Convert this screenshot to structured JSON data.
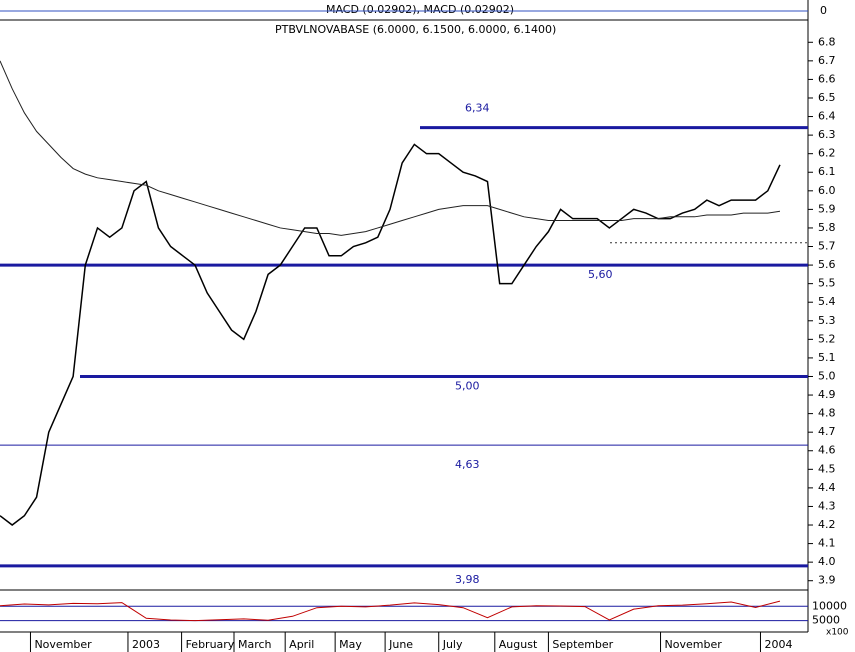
{
  "chart_data": {
    "type": "line",
    "title": "PTBVLNOVABASE (6.0000, 6.1500, 6.0000, 6.1400)",
    "macd_label": "MACD (0.02902), MACD (0.02902)",
    "macd_tick": 0,
    "xlim": [
      0,
      66.3
    ],
    "xticks": [
      {
        "value": 2.5,
        "label": "November"
      },
      {
        "value": 10.5,
        "label": "2003"
      },
      {
        "value": 14.9,
        "label": "February"
      },
      {
        "value": 19.2,
        "label": "March"
      },
      {
        "value": 23.4,
        "label": "April"
      },
      {
        "value": 27.5,
        "label": "May"
      },
      {
        "value": 31.6,
        "label": "June"
      },
      {
        "value": 36,
        "label": "July"
      },
      {
        "value": 40.6,
        "label": "August"
      },
      {
        "value": 45,
        "label": "September"
      },
      {
        "value": 54.2,
        "label": "November"
      },
      {
        "value": 62.4,
        "label": "2004"
      }
    ],
    "ylim": [
      3.85,
      6.92
    ],
    "yticks": [
      3.9,
      {
        "value": 4,
        "label": "4.0"
      },
      4.1,
      4.2,
      4.3,
      4.4,
      4.5,
      4.6,
      4.7,
      4.8,
      4.9,
      {
        "value": 5,
        "label": "5.0"
      },
      5.1,
      5.2,
      5.3,
      5.4,
      5.5,
      5.6,
      5.7,
      5.8,
      5.9,
      {
        "value": 6,
        "label": "6.0"
      },
      6.1,
      6.2,
      6.3,
      6.4,
      6.5,
      6.6,
      6.7,
      6.8
    ],
    "series": [
      {
        "color": "#000000",
        "values": [
          4.25,
          4.2,
          4.25,
          4.35,
          4.7,
          4.85,
          5.0,
          5.6,
          5.8,
          5.75,
          5.8,
          6.0,
          6.05,
          5.8,
          5.7,
          5.65,
          5.6,
          5.45,
          5.35,
          5.25,
          5.2,
          5.35,
          5.55,
          5.6,
          5.7,
          5.8,
          5.8,
          5.65,
          5.65,
          5.7,
          5.72,
          5.75,
          5.9,
          6.15,
          6.25,
          6.2,
          6.2,
          6.15,
          6.1,
          6.08,
          6.05,
          5.5,
          5.5,
          5.6,
          5.7,
          5.78,
          5.9,
          5.85,
          5.85,
          5.85,
          5.8,
          5.85,
          5.9,
          5.88,
          5.85,
          5.85,
          5.88,
          5.9,
          5.95,
          5.92,
          5.95,
          5.95,
          5.95,
          6.0,
          6.14
        ]
      },
      {
        "color": "#222222",
        "values": [
          6.7,
          6.55,
          6.42,
          6.32,
          6.25,
          6.18,
          6.12,
          6.09,
          6.07,
          6.06,
          6.05,
          6.04,
          6.03,
          6.0,
          5.98,
          5.96,
          5.94,
          5.92,
          5.9,
          5.88,
          5.86,
          5.84,
          5.82,
          5.8,
          5.79,
          5.78,
          5.77,
          5.77,
          5.76,
          5.77,
          5.78,
          5.8,
          5.82,
          5.84,
          5.86,
          5.88,
          5.9,
          5.91,
          5.92,
          5.92,
          5.92,
          5.9,
          5.88,
          5.86,
          5.85,
          5.84,
          5.84,
          5.84,
          5.84,
          5.84,
          5.84,
          5.84,
          5.85,
          5.85,
          5.85,
          5.86,
          5.86,
          5.86,
          5.87,
          5.87,
          5.87,
          5.88,
          5.88,
          5.88,
          5.89
        ]
      }
    ],
    "levels": [
      {
        "value": 6.34,
        "label": "6,34"
      },
      {
        "value": 5.6,
        "label": "5,60"
      },
      {
        "value": 5.0,
        "label": "5,00"
      },
      {
        "value": 4.63,
        "label": "4,63"
      },
      {
        "value": 3.98,
        "label": "3,98"
      }
    ],
    "dashed_level": 5.72,
    "indicator": {
      "color": "#c00000",
      "ylim": [
        1000,
        15700
      ],
      "yticks": [
        10000,
        5000
      ],
      "unit_label": "x100",
      "values": [
        10200,
        10800,
        10500,
        11000,
        10900,
        11300,
        5800,
        5200,
        5000,
        5300,
        5600,
        5100,
        6500,
        9500,
        10000,
        9800,
        10400,
        11200,
        10600,
        9500,
        6000,
        9800,
        10200,
        10100,
        9900,
        5200,
        9000,
        10200,
        10400,
        10900,
        11500,
        9600,
        11800
      ]
    }
  }
}
